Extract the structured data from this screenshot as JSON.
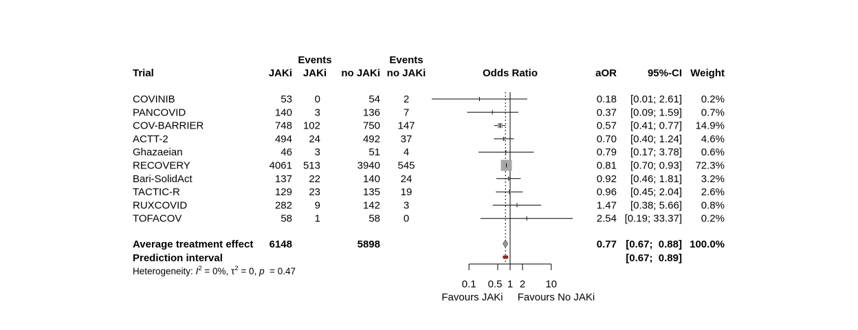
{
  "chart_data": {
    "type": "forest",
    "columns": {
      "trial": "Trial",
      "n_jaki": "JAKi",
      "events_jaki_top": "Events",
      "events_jaki_bottom": "JAKi",
      "n_nojaki": "no JAKi",
      "events_nojaki_top": "Events",
      "events_nojaki_bottom": "no JAKi",
      "plot": "Odds Ratio",
      "aor": "aOR",
      "ci": "95%-CI",
      "weight": "Weight"
    },
    "studies": [
      {
        "trial": "COVINIB",
        "n_jaki": "53",
        "ev_jaki": "0",
        "n_nojaki": "54",
        "ev_nojaki": "2",
        "or": 0.18,
        "lo": 0.01,
        "hi": 2.61,
        "w": 0.2,
        "aor": "0.18",
        "ci": "[0.01;  2.61]",
        "weight": "0.2%"
      },
      {
        "trial": "PANCOVID",
        "n_jaki": "140",
        "ev_jaki": "3",
        "n_nojaki": "136",
        "ev_nojaki": "7",
        "or": 0.37,
        "lo": 0.09,
        "hi": 1.59,
        "w": 0.7,
        "aor": "0.37",
        "ci": "[0.09;  1.59]",
        "weight": "0.7%"
      },
      {
        "trial": "COV-BARRIER",
        "n_jaki": "748",
        "ev_jaki": "102",
        "n_nojaki": "750",
        "ev_nojaki": "147",
        "or": 0.57,
        "lo": 0.41,
        "hi": 0.77,
        "w": 14.9,
        "aor": "0.57",
        "ci": "[0.41;  0.77]",
        "weight": "14.9%"
      },
      {
        "trial": "ACTT-2",
        "n_jaki": "494",
        "ev_jaki": "24",
        "n_nojaki": "492",
        "ev_nojaki": "37",
        "or": 0.7,
        "lo": 0.4,
        "hi": 1.24,
        "w": 4.6,
        "aor": "0.70",
        "ci": "[0.40;  1.24]",
        "weight": "4.6%"
      },
      {
        "trial": "Ghazaeian",
        "n_jaki": "46",
        "ev_jaki": "3",
        "n_nojaki": "51",
        "ev_nojaki": "4",
        "or": 0.79,
        "lo": 0.17,
        "hi": 3.78,
        "w": 0.6,
        "aor": "0.79",
        "ci": "[0.17;  3.78]",
        "weight": "0.6%"
      },
      {
        "trial": "RECOVERY",
        "n_jaki": "4061",
        "ev_jaki": "513",
        "n_nojaki": "3940",
        "ev_nojaki": "545",
        "or": 0.81,
        "lo": 0.7,
        "hi": 0.93,
        "w": 72.3,
        "aor": "0.81",
        "ci": "[0.70;  0.93]",
        "weight": "72.3%"
      },
      {
        "trial": "Bari-SolidAct",
        "n_jaki": "137",
        "ev_jaki": "22",
        "n_nojaki": "140",
        "ev_nojaki": "24",
        "or": 0.92,
        "lo": 0.46,
        "hi": 1.81,
        "w": 3.2,
        "aor": "0.92",
        "ci": "[0.46;  1.81]",
        "weight": "3.2%"
      },
      {
        "trial": "TACTIC-R",
        "n_jaki": "129",
        "ev_jaki": "23",
        "n_nojaki": "135",
        "ev_nojaki": "19",
        "or": 0.96,
        "lo": 0.45,
        "hi": 2.04,
        "w": 2.6,
        "aor": "0.96",
        "ci": "[0.45;  2.04]",
        "weight": "2.6%"
      },
      {
        "trial": "RUXCOVID",
        "n_jaki": "282",
        "ev_jaki": "9",
        "n_nojaki": "142",
        "ev_nojaki": "3",
        "or": 1.47,
        "lo": 0.38,
        "hi": 5.66,
        "w": 0.8,
        "aor": "1.47",
        "ci": "[0.38;  5.66]",
        "weight": "0.8%"
      },
      {
        "trial": "TOFACOV",
        "n_jaki": "58",
        "ev_jaki": "1",
        "n_nojaki": "58",
        "ev_nojaki": "0",
        "or": 2.54,
        "lo": 0.19,
        "hi": 33.37,
        "w": 0.2,
        "aor": "2.54",
        "ci": "[0.19; 33.37]",
        "weight": "0.2%"
      }
    ],
    "summary": {
      "label": "Average treatment effect",
      "n_jaki": "6148",
      "n_nojaki": "5898",
      "or": 0.77,
      "lo": 0.67,
      "hi": 0.88,
      "aor": "0.77",
      "ci": "[0.67;  0.88]",
      "weight": "100.0%"
    },
    "prediction": {
      "label": "Prediction interval",
      "lo": 0.67,
      "hi": 0.89,
      "ci": "[0.67;  0.89]"
    },
    "heterogeneity": {
      "prefix": "Heterogeneity: ",
      "i2_sym": "I",
      "i2_val": " = 0%, ",
      "tau_sym": "τ",
      "tau_val": " = 0, ",
      "p_sym": "p",
      "p_val": "  = 0.47"
    },
    "x_axis": {
      "scale": "log",
      "ticks": [
        0.1,
        0.5,
        1,
        2,
        10
      ],
      "tick_labels": [
        "0.1",
        "0.5",
        "1",
        "2",
        "10"
      ],
      "null_line": 1,
      "summary_line": 0.77,
      "left_label": "Favours JAKi",
      "right_label": "Favours No JAKi"
    },
    "colors": {
      "square": "#a6a6a6",
      "diamond": "#9b9b9b",
      "prediction": "#b01c1c"
    }
  }
}
